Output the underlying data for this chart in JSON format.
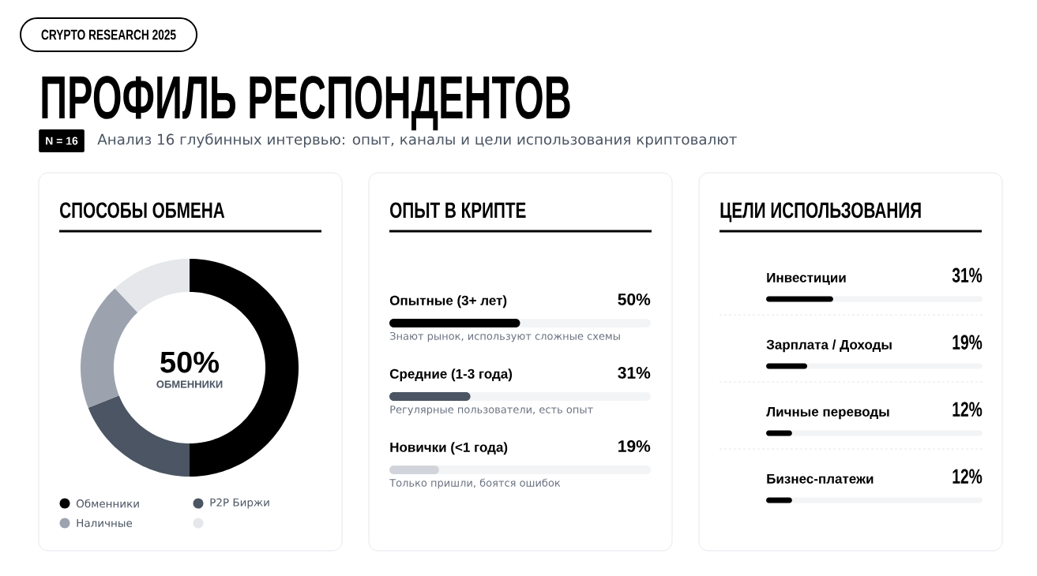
{
  "chart_data": [
    {
      "type": "other",
      "title": "ПРОФИЛЬ РЕСПОНДЕНТОВ",
      "subtitle": "Анализ 16 глубинных интервью: опыт, каналы и цели использования криптовалют",
      "annotations": [
        "CRYPTO RESEARCH 2025",
        "N = 16"
      ]
    },
    {
      "type": "donut",
      "title": "СПОСОБЫ ОБМЕНА",
      "categories": [
        "Обменники",
        "P2P Биржи",
        "Наличные",
        null
      ],
      "values": [
        50,
        19,
        19,
        12
      ],
      "colors": [
        "#000000",
        "#4b5563",
        "#9ca3af",
        "#e5e7eb"
      ],
      "legend": "bottom",
      "annotations": [
        "50%",
        "ОБМЕННИКИ"
      ]
    },
    {
      "type": "bar",
      "orientation": "horizontal",
      "title": "ОПЫТ В КРИПТЕ",
      "categories": [
        "Опытные (3+ лет)",
        "Средние (1-3 года)",
        "Новички (<1 года)"
      ],
      "values": [
        50,
        31,
        19
      ],
      "colors": [
        "#000000",
        "#4b5563",
        "#d1d5db"
      ],
      "value_labels": [
        "50%",
        "31%",
        "19%"
      ],
      "xlim": [
        0,
        100
      ],
      "tick_labels": "y",
      "annotations": [
        "Знают рынок, используют сложные схемы",
        "Регулярные пользователи, есть опыт",
        "Только пришли, боятся ошибок"
      ]
    },
    {
      "type": "bar",
      "orientation": "horizontal",
      "title": "ЦЕЛИ ИСПОЛЬЗОВАНИЯ",
      "categories": [
        "Инвестиции",
        "Зарплата / Доходы",
        "Личные переводы",
        "Бизнес-платежи"
      ],
      "values": [
        31,
        19,
        12,
        12
      ],
      "color": "#000000",
      "value_labels": [
        "31%",
        "19%",
        "12%",
        "12%"
      ],
      "xlim": [
        0,
        100
      ],
      "tick_labels": "y"
    }
  ]
}
